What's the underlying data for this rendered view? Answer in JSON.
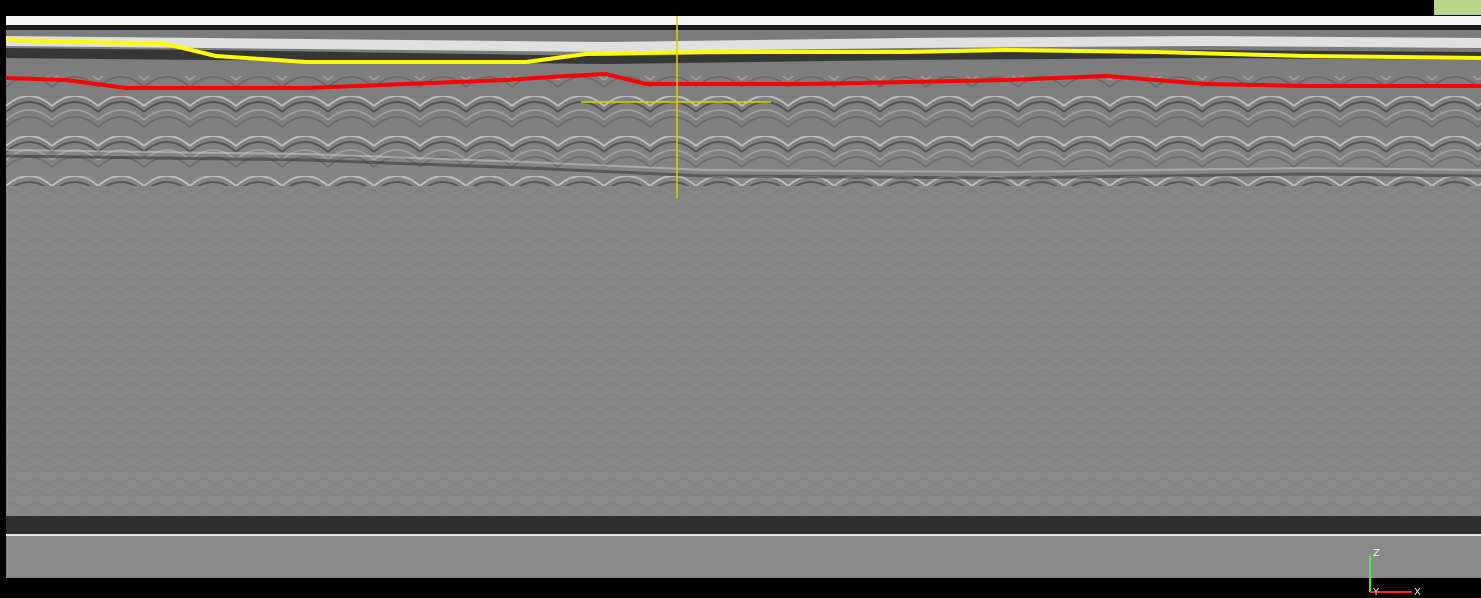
{
  "viewer": {
    "accent_color": "#b7d68a",
    "background_color": "#808080"
  },
  "horizons": [
    {
      "color": "#ffff00"
    },
    {
      "color": "#ff0000"
    }
  ],
  "cursor": {
    "color": "#d9d400"
  },
  "axis_gizmo": {
    "z_label": "Z",
    "y_label": "Y",
    "x_label": "X",
    "z_color": "#33ff33",
    "x_color": "#ff2020"
  }
}
